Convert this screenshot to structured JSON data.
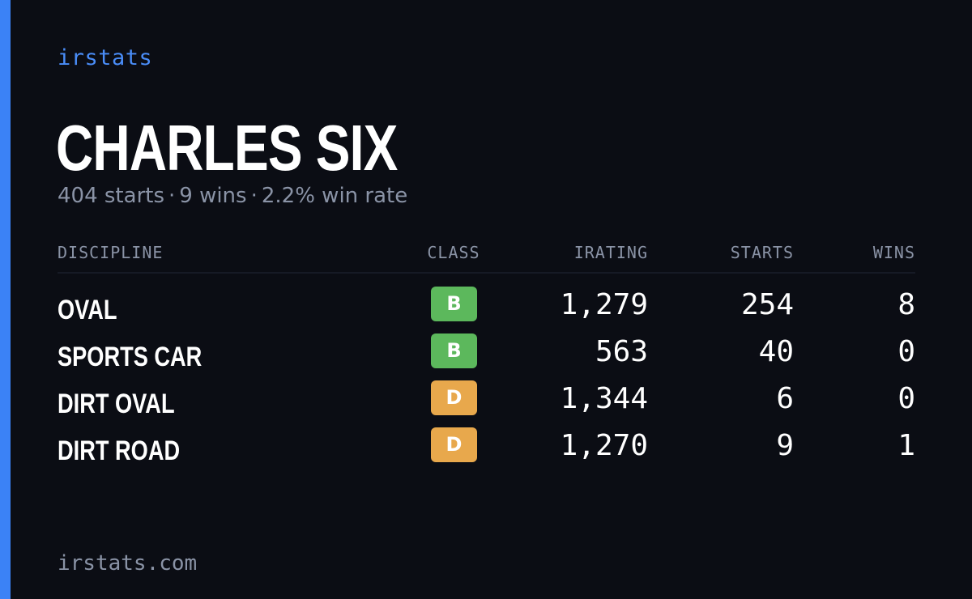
{
  "brand": "irstats",
  "player": {
    "name": "CHARLES SIX",
    "starts": "404 starts",
    "wins": "9 wins",
    "win_rate": "2.2% win rate",
    "separator": "·"
  },
  "table": {
    "headers": {
      "discipline": "DISCIPLINE",
      "class": "CLASS",
      "irating": "IRATING",
      "starts": "STARTS",
      "wins": "WINS"
    },
    "rows": [
      {
        "discipline": "OVAL",
        "class": "B",
        "class_color": "#5cb85c",
        "irating": "1,279",
        "starts": "254",
        "wins": "8"
      },
      {
        "discipline": "SPORTS CAR",
        "class": "B",
        "class_color": "#5cb85c",
        "irating": "563",
        "starts": "40",
        "wins": "0"
      },
      {
        "discipline": "DIRT OVAL",
        "class": "D",
        "class_color": "#e8a84c",
        "irating": "1,344",
        "starts": "6",
        "wins": "0"
      },
      {
        "discipline": "DIRT ROAD",
        "class": "D",
        "class_color": "#e8a84c",
        "irating": "1,270",
        "starts": "9",
        "wins": "1"
      }
    ]
  },
  "footer": "irstats.com",
  "colors": {
    "accent": "#3b82f6",
    "background": "#0b0d14",
    "muted_text": "#8a93a6"
  }
}
